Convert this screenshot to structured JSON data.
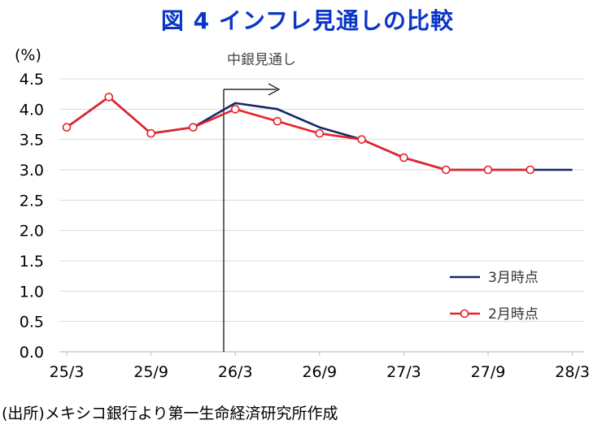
{
  "chart_data": {
    "type": "line",
    "title": "図 4  インフレ見通しの比較",
    "y_unit": "(%)",
    "ylim": [
      0,
      4.5
    ],
    "y_ticks": [
      "0.0",
      "0.5",
      "1.0",
      "1.5",
      "2.0",
      "2.5",
      "3.0",
      "3.5",
      "4.0",
      "4.5"
    ],
    "x_ticks": [
      "25/3",
      "25/9",
      "26/3",
      "26/9",
      "27/3",
      "27/9",
      "28/3"
    ],
    "x": [
      "25/3",
      "25/6",
      "25/9",
      "25/12",
      "26/3",
      "26/6",
      "26/9",
      "26/12",
      "27/3",
      "27/6",
      "27/9",
      "27/12",
      "28/3"
    ],
    "grid": true,
    "legend_position": "bottom-right",
    "annotation": "中銀見通し",
    "series": [
      {
        "name": "3月時点",
        "color": "#12286a",
        "marker": "none",
        "values": [
          3.7,
          4.2,
          3.6,
          3.7,
          4.1,
          4.0,
          3.7,
          3.5,
          3.2,
          3.0,
          3.0,
          3.0,
          3.0
        ]
      },
      {
        "name": "2月時点",
        "color": "#e6222a",
        "marker": "open-circle",
        "values": [
          3.7,
          4.2,
          3.6,
          3.7,
          4.0,
          3.8,
          3.6,
          3.5,
          3.2,
          3.0,
          3.0,
          3.0,
          null
        ]
      }
    ]
  },
  "source_note": "(出所)メキシコ銀行より第一生命経済研究所作成"
}
